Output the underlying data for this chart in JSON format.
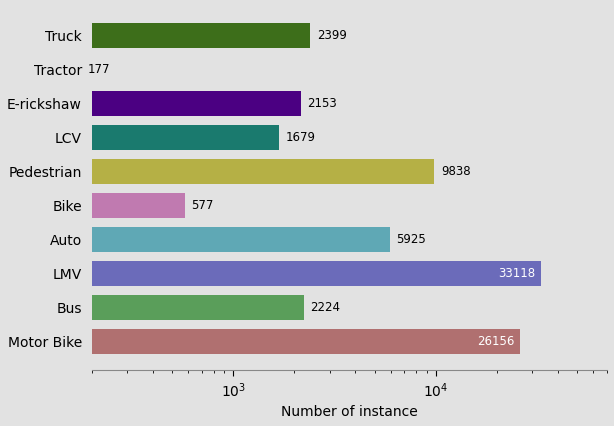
{
  "categories": [
    "Motor Bike",
    "Bus",
    "LMV",
    "Auto",
    "Bike",
    "Pedestrian",
    "LCV",
    "E-rickshaw",
    "Tractor",
    "Truck"
  ],
  "values": [
    26156,
    2224,
    33118,
    5925,
    577,
    9838,
    1679,
    2153,
    177,
    2399
  ],
  "colors": [
    "#b07070",
    "#5a9e5a",
    "#6b6bba",
    "#5fa8b5",
    "#c07ab0",
    "#b5b045",
    "#1a7a6e",
    "#4b0082",
    "#8b1a1a",
    "#3d6e1a"
  ],
  "xlabel": "Number of instance",
  "background_color": "#e2e2e2",
  "text_colors": [
    "white",
    "black",
    "white",
    "black",
    "black",
    "black",
    "black",
    "black",
    "black",
    "black"
  ],
  "figsize": [
    6.14,
    4.26
  ],
  "dpi": 100
}
